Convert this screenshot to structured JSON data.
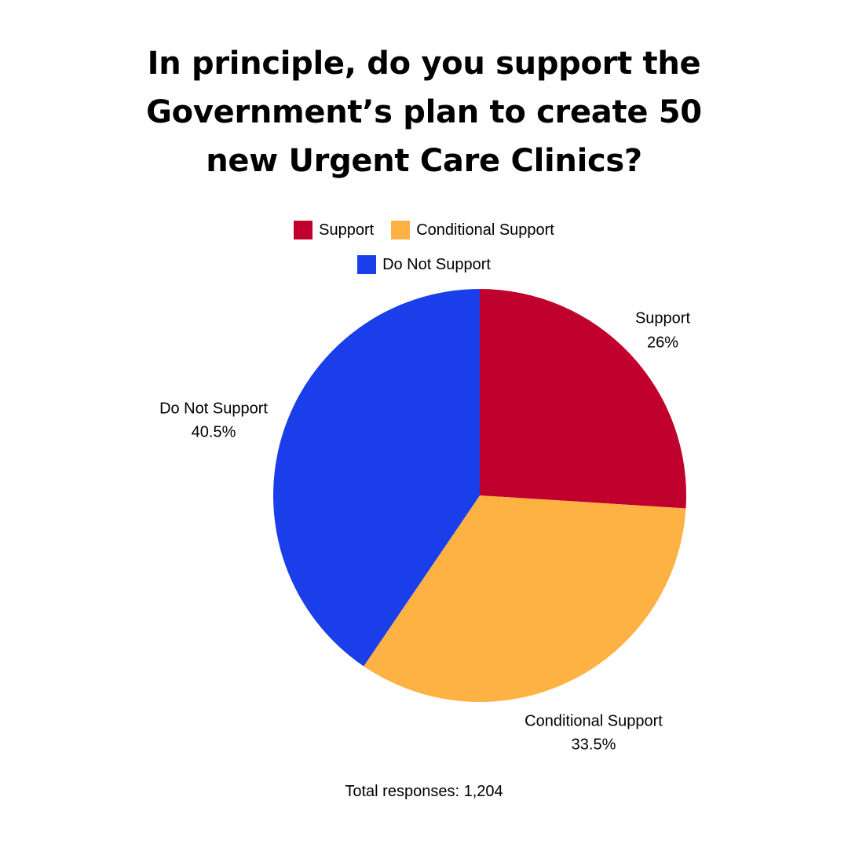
{
  "header": {
    "title_lines": [
      "In principle, do you support the",
      "Government’s plan to create 50",
      "new Urgent Care Clinics?"
    ]
  },
  "footer": {
    "total_responses": "Total responses: 1,204"
  },
  "chart_data": {
    "type": "pie",
    "title": "In principle, do you support the Government’s plan to create 50 new Urgent Care Clinics?",
    "legend_placement": "top-center",
    "categories": [
      "Support",
      "Conditional Support",
      "Do Not Support"
    ],
    "values": [
      26,
      33.5,
      40.5
    ],
    "value_labels": [
      "26%",
      "33.5%",
      "40.5%"
    ],
    "colors": [
      "#C0002D",
      "#FFB244",
      "#1A3FEA"
    ],
    "start_angle": "12 o'clock",
    "direction": "clockwise"
  }
}
